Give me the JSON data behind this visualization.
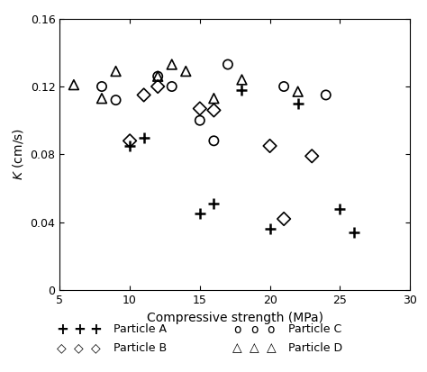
{
  "particle_A": {
    "x": [
      10,
      11,
      15,
      16,
      18,
      20,
      22,
      25,
      26
    ],
    "y": [
      0.085,
      0.09,
      0.045,
      0.051,
      0.118,
      0.036,
      0.11,
      0.048,
      0.034
    ]
  },
  "particle_B": {
    "x": [
      10,
      11,
      12,
      15,
      16,
      20,
      21,
      23
    ],
    "y": [
      0.088,
      0.115,
      0.12,
      0.107,
      0.106,
      0.085,
      0.042,
      0.079
    ]
  },
  "particle_C": {
    "x": [
      8,
      9,
      12,
      13,
      15,
      16,
      17,
      21,
      24
    ],
    "y": [
      0.12,
      0.112,
      0.126,
      0.12,
      0.1,
      0.088,
      0.133,
      0.12,
      0.115
    ]
  },
  "particle_D": {
    "x": [
      6,
      8,
      9,
      12,
      13,
      14,
      16,
      18,
      22
    ],
    "y": [
      0.121,
      0.113,
      0.129,
      0.126,
      0.133,
      0.129,
      0.113,
      0.124,
      0.117
    ]
  },
  "xlabel": "Compressive strength (MPa)",
  "ylabel": "$K$ (cm/s)",
  "xlim": [
    5,
    30
  ],
  "ylim": [
    0,
    0.16
  ],
  "xticks": [
    5,
    10,
    15,
    20,
    25,
    30
  ],
  "yticks": [
    0,
    0.04,
    0.08,
    0.12,
    0.16
  ],
  "color": "black",
  "figsize": [
    4.74,
    4.13
  ],
  "dpi": 100
}
